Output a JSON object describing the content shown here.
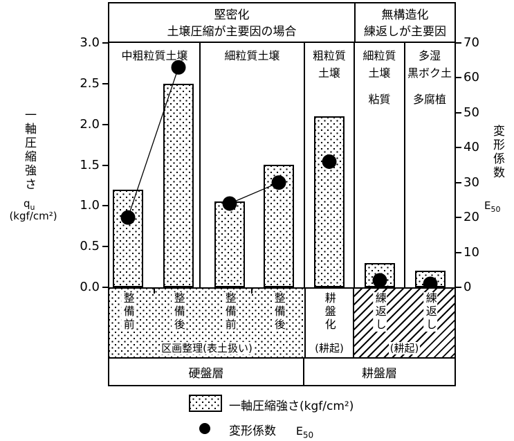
{
  "header": {
    "compaction": {
      "line1": "堅密化",
      "line2": "土壌圧縮が主要因の場合"
    },
    "destructuring": {
      "line1": "無構造化",
      "line2": "練返しが主要因"
    }
  },
  "left_axis": {
    "title_vertical": "一軸圧縮強さ",
    "symbol_main": "q",
    "symbol_sub": "u",
    "unit": "(kgf/cm²)",
    "ticks": [
      "3.0",
      "2.5",
      "2.0",
      "1.5",
      "1.0",
      "0.5",
      "0.0"
    ]
  },
  "right_axis": {
    "title_vertical": "変形係数",
    "symbol_main": "E",
    "symbol_sub": "50",
    "ticks": [
      "70",
      "60",
      "50",
      "40",
      "30",
      "20",
      "10",
      "0"
    ]
  },
  "chart_data": {
    "type": "bar",
    "dual_axis": true,
    "title": "",
    "categories": [
      "整備前",
      "整備後",
      "整備前",
      "整備後",
      "耕盤化",
      "練返し",
      "練返し"
    ],
    "category_sub_tillage": "(耕起)",
    "groups": [
      {
        "label_lines": [
          "中粗粒質土壌"
        ],
        "bar_indexes": [
          0,
          1
        ]
      },
      {
        "label_lines": [
          "細粒質土壌"
        ],
        "bar_indexes": [
          2,
          3
        ]
      },
      {
        "label_lines": [
          "粗粒質",
          "土壌"
        ],
        "bar_indexes": [
          4
        ]
      },
      {
        "label_lines": [
          "細粒質",
          "土壌",
          "粘質"
        ],
        "bar_indexes": [
          5
        ]
      },
      {
        "label_lines": [
          "多湿",
          "黒ボク土",
          "多腐植"
        ],
        "bar_indexes": [
          6
        ]
      }
    ],
    "series": [
      {
        "name": "一軸圧縮強さ (kgf/cm²)",
        "type": "bar",
        "axis": "left",
        "values": [
          1.2,
          2.5,
          1.05,
          1.5,
          2.1,
          0.3,
          0.2
        ]
      },
      {
        "name": "変形係数 E50",
        "type": "scatter",
        "axis": "right",
        "values": [
          20,
          63,
          24,
          30,
          36,
          2,
          1
        ],
        "connect_pairs": [
          [
            0,
            1
          ],
          [
            2,
            3
          ]
        ]
      }
    ],
    "left_ylabel": "一軸圧縮強さ qu (kgf/cm²)",
    "right_ylabel": "変形係数 E50",
    "left_ylim": [
      0,
      3.0
    ],
    "right_ylim": [
      0,
      70
    ],
    "grid": false,
    "legend_position": "bottom"
  },
  "bottom_bands": {
    "treatment_label": "区画整理(表土扱い)",
    "tillage_sub": "(耕起)",
    "kneading_sub": "(耕起)",
    "layer_left": "硬盤層",
    "layer_right": "耕盤層"
  },
  "legend": {
    "bar_label": "一軸圧縮強さ(kgf/cm²)",
    "dot_label": "変形係数",
    "dot_symbol_main": "E",
    "dot_symbol_sub": "50"
  },
  "colors": {
    "ink": "#000000",
    "background": "#ffffff"
  }
}
